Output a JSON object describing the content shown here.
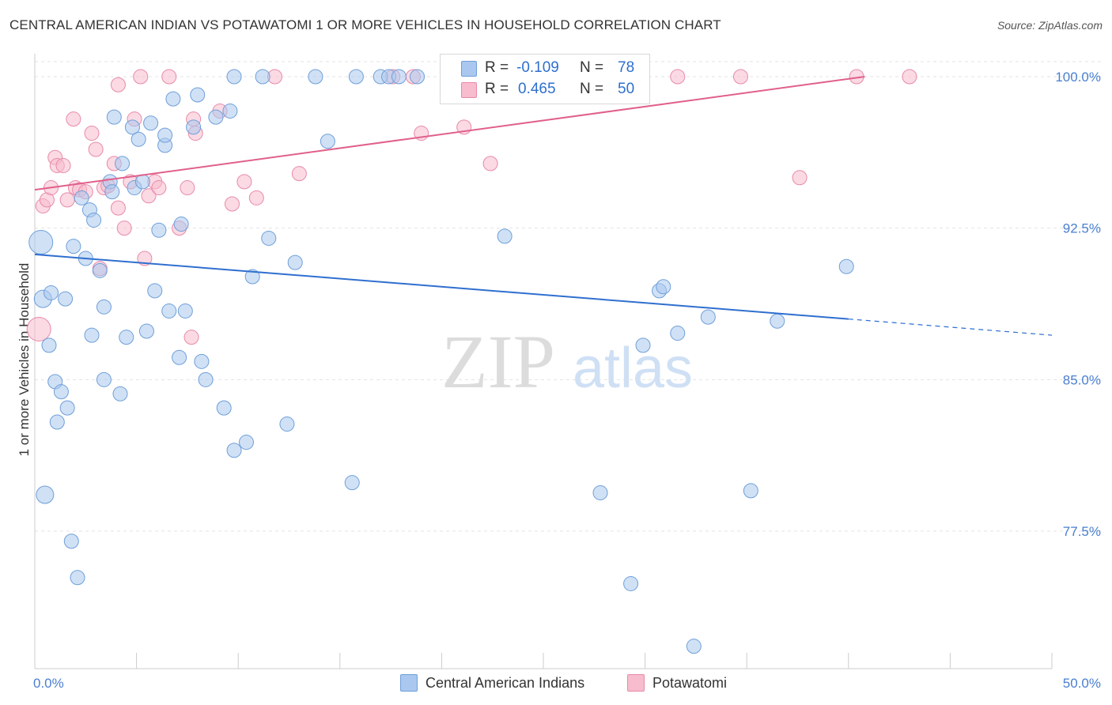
{
  "title": "CENTRAL AMERICAN INDIAN VS POTAWATOMI 1 OR MORE VEHICLES IN HOUSEHOLD CORRELATION CHART",
  "source": "Source: ZipAtlas.com",
  "watermark": {
    "zip": "ZIP",
    "atlas": "atlas"
  },
  "colors": {
    "blue_fill": "#aac8ef",
    "blue_stroke": "#6f9fd8",
    "blue_line": "#2f6fcf",
    "pink_fill": "#f7bccd",
    "pink_stroke": "#e88aa8",
    "pink_line": "#e0608a",
    "tick_label": "#4a7fd0",
    "grid": "#e3e3e3"
  },
  "legend": {
    "rows": [
      {
        "r_label": "R =",
        "r_value": "-0.109",
        "n_label": "N =",
        "n_value": "78",
        "color": "blue"
      },
      {
        "r_label": "R =",
        "r_value": "0.465",
        "n_label": "N =",
        "n_value": "50",
        "color": "pink"
      }
    ]
  },
  "bottom_legend": [
    "Central American Indians",
    "Potawatomi"
  ],
  "chart_data": {
    "type": "scatter",
    "title": "CENTRAL AMERICAN INDIAN VS POTAWATOMI 1 OR MORE VEHICLES IN HOUSEHOLD CORRELATION CHART",
    "xlabel": "",
    "ylabel": "1 or more Vehicles in Household",
    "xlim": [
      0,
      50
    ],
    "ylim": [
      71.5,
      101.2
    ],
    "x_tick_labels": [
      "0.0%",
      "50.0%"
    ],
    "y_ticks": [
      77.5,
      85.0,
      92.5,
      100.0
    ],
    "y_tick_labels": [
      "77.5%",
      "85.0%",
      "92.5%",
      "100.0%"
    ],
    "grid": true,
    "legend_position": "top-center",
    "series": [
      {
        "name": "Central American Indians",
        "color": "blue",
        "r": -0.109,
        "n": 78,
        "trend": {
          "x": [
            0,
            40,
            50
          ],
          "y": [
            91.2,
            88.0,
            87.2
          ],
          "solid_until": 40
        },
        "points": [
          [
            0.3,
            91.8
          ],
          [
            0.4,
            89.0
          ],
          [
            0.5,
            79.3
          ],
          [
            0.7,
            86.7
          ],
          [
            0.8,
            89.3
          ],
          [
            1.0,
            84.9
          ],
          [
            1.1,
            82.9
          ],
          [
            1.3,
            84.4
          ],
          [
            1.5,
            89.0
          ],
          [
            1.6,
            83.6
          ],
          [
            1.8,
            77.0
          ],
          [
            1.9,
            91.6
          ],
          [
            2.1,
            75.2
          ],
          [
            2.3,
            94.0
          ],
          [
            2.5,
            91.0
          ],
          [
            2.7,
            93.4
          ],
          [
            2.8,
            87.2
          ],
          [
            2.9,
            92.9
          ],
          [
            3.2,
            90.4
          ],
          [
            3.4,
            88.6
          ],
          [
            3.4,
            85.0
          ],
          [
            3.7,
            94.8
          ],
          [
            3.8,
            94.3
          ],
          [
            3.9,
            98.0
          ],
          [
            4.2,
            84.3
          ],
          [
            4.3,
            95.7
          ],
          [
            4.5,
            87.1
          ],
          [
            4.8,
            97.5
          ],
          [
            4.9,
            94.5
          ],
          [
            5.1,
            96.9
          ],
          [
            5.3,
            94.8
          ],
          [
            5.5,
            87.4
          ],
          [
            5.7,
            97.7
          ],
          [
            5.9,
            89.4
          ],
          [
            6.1,
            92.4
          ],
          [
            6.4,
            96.6
          ],
          [
            6.4,
            97.1
          ],
          [
            6.6,
            88.4
          ],
          [
            6.8,
            98.9
          ],
          [
            7.1,
            86.1
          ],
          [
            7.2,
            92.7
          ],
          [
            7.4,
            88.4
          ],
          [
            7.8,
            97.5
          ],
          [
            8.0,
            99.1
          ],
          [
            8.2,
            85.9
          ],
          [
            8.4,
            85.0
          ],
          [
            8.9,
            98.0
          ],
          [
            9.3,
            83.6
          ],
          [
            9.6,
            98.3
          ],
          [
            9.8,
            100.0
          ],
          [
            9.8,
            81.5
          ],
          [
            10.4,
            81.9
          ],
          [
            10.7,
            90.1
          ],
          [
            11.2,
            100.0
          ],
          [
            11.5,
            92.0
          ],
          [
            12.4,
            82.8
          ],
          [
            12.8,
            90.8
          ],
          [
            13.8,
            100.0
          ],
          [
            14.4,
            96.8
          ],
          [
            15.6,
            79.9
          ],
          [
            15.8,
            100.0
          ],
          [
            17.0,
            100.0
          ],
          [
            17.4,
            100.0
          ],
          [
            17.9,
            100.0
          ],
          [
            18.8,
            100.0
          ],
          [
            22.0,
            100.0
          ],
          [
            23.1,
            92.1
          ],
          [
            27.8,
            79.4
          ],
          [
            29.3,
            74.9
          ],
          [
            29.9,
            86.7
          ],
          [
            30.7,
            89.4
          ],
          [
            30.9,
            89.6
          ],
          [
            31.6,
            87.3
          ],
          [
            32.4,
            71.8
          ],
          [
            33.1,
            88.1
          ],
          [
            35.2,
            79.5
          ],
          [
            36.5,
            87.9
          ],
          [
            39.9,
            90.6
          ]
        ]
      },
      {
        "name": "Potawatomi",
        "color": "pink",
        "r": 0.465,
        "n": 50,
        "trend": {
          "x": [
            0,
            40.8
          ],
          "y": [
            94.4,
            100.0
          ]
        },
        "points": [
          [
            0.2,
            87.5
          ],
          [
            0.4,
            93.6
          ],
          [
            0.6,
            93.9
          ],
          [
            0.8,
            94.5
          ],
          [
            1.0,
            96.0
          ],
          [
            1.1,
            95.6
          ],
          [
            1.4,
            95.6
          ],
          [
            1.6,
            93.9
          ],
          [
            1.9,
            97.9
          ],
          [
            2.0,
            94.5
          ],
          [
            2.2,
            94.4
          ],
          [
            2.5,
            94.3
          ],
          [
            2.8,
            97.2
          ],
          [
            3.0,
            96.4
          ],
          [
            3.2,
            90.5
          ],
          [
            3.4,
            94.5
          ],
          [
            3.6,
            94.6
          ],
          [
            3.9,
            95.7
          ],
          [
            4.1,
            93.5
          ],
          [
            4.1,
            99.6
          ],
          [
            4.4,
            92.5
          ],
          [
            4.7,
            94.8
          ],
          [
            4.9,
            97.9
          ],
          [
            5.2,
            100.0
          ],
          [
            5.4,
            91.0
          ],
          [
            5.6,
            94.1
          ],
          [
            5.9,
            94.8
          ],
          [
            6.1,
            94.5
          ],
          [
            6.6,
            100.0
          ],
          [
            7.1,
            92.5
          ],
          [
            7.5,
            94.5
          ],
          [
            7.7,
            87.1
          ],
          [
            7.8,
            97.9
          ],
          [
            7.9,
            97.2
          ],
          [
            9.1,
            98.3
          ],
          [
            9.7,
            93.7
          ],
          [
            10.3,
            94.8
          ],
          [
            10.9,
            94.0
          ],
          [
            11.8,
            100.0
          ],
          [
            13.0,
            95.2
          ],
          [
            17.6,
            100.0
          ],
          [
            18.6,
            100.0
          ],
          [
            19.0,
            97.2
          ],
          [
            21.1,
            97.5
          ],
          [
            22.4,
            95.7
          ],
          [
            31.6,
            100.0
          ],
          [
            34.7,
            100.0
          ],
          [
            37.6,
            95.0
          ],
          [
            40.4,
            100.0
          ],
          [
            43.0,
            100.0
          ]
        ]
      }
    ]
  }
}
